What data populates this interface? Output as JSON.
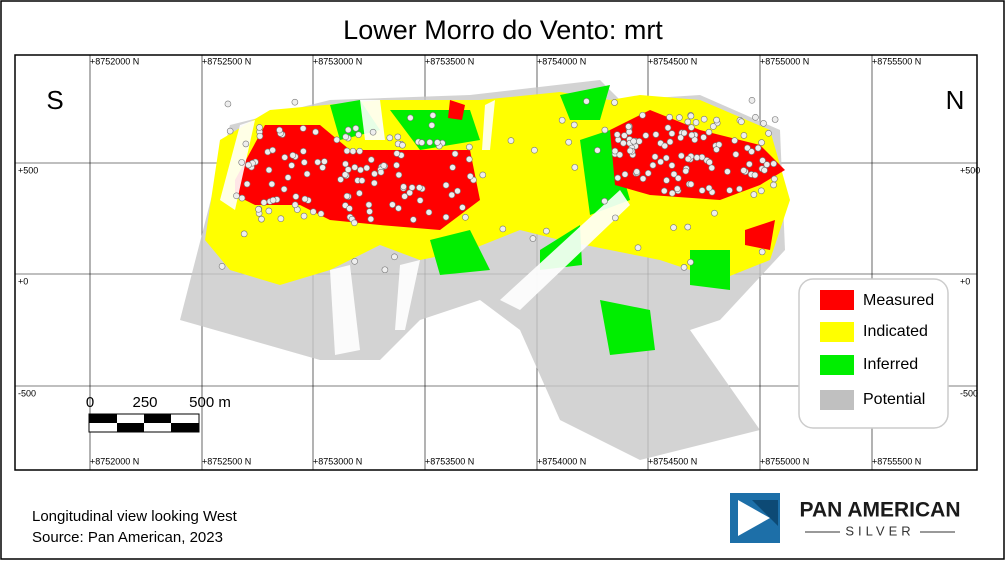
{
  "header": {
    "title": "Lower Morro do Vento: mrt"
  },
  "map": {
    "orientation": {
      "left": "S",
      "right": "N"
    },
    "eastings": [
      "+8752000 N",
      "+8752500 N",
      "+8753000 N",
      "+8753500 N",
      "+8754000 N",
      "+8754500 N",
      "+8755000 N",
      "+8755500 N"
    ],
    "elevations": [
      "+500",
      "+0",
      "-500"
    ],
    "scale_bar": {
      "labels": [
        "0",
        "250",
        "500 m"
      ]
    }
  },
  "legend": {
    "items": [
      "Measured",
      "Indicated",
      "Inferred",
      "Potential"
    ]
  },
  "footer": {
    "lines": [
      "Longitudinal view looking West",
      "Source: Pan American, 2023"
    ]
  },
  "logo": {
    "name": "PAN AMERICAN",
    "sub": "SILVER"
  }
}
